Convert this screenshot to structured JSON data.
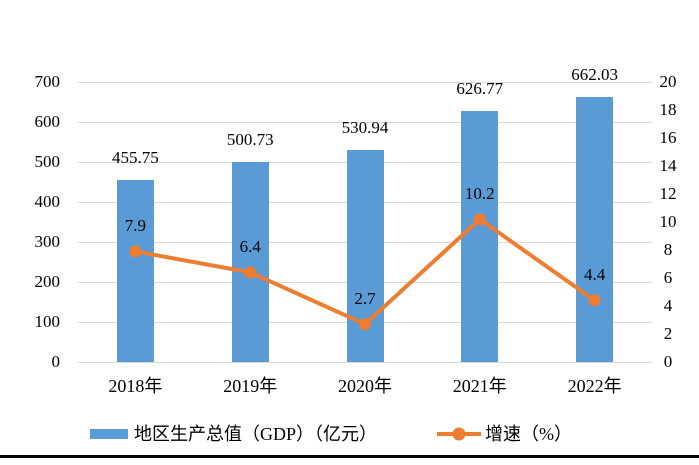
{
  "chart_data": {
    "type": "bar",
    "subtype": "bar-line-combo",
    "title": "",
    "categories": [
      "2018年",
      "2019年",
      "2020年",
      "2021年",
      "2022年"
    ],
    "series": [
      {
        "name": "地区生产总值（GDP）（亿元）",
        "type": "bar",
        "axis": "left",
        "color": "#5B9BD5",
        "values": [
          455.75,
          500.73,
          530.94,
          626.77,
          662.03
        ],
        "labels": [
          "455.75",
          "500.73",
          "530.94",
          "626.77",
          "662.03"
        ]
      },
      {
        "name": "增速（%）",
        "type": "line",
        "axis": "right",
        "color": "#ED7D31",
        "values": [
          7.9,
          6.4,
          2.7,
          10.2,
          4.4
        ],
        "labels": [
          "7.9",
          "6.4",
          "2.7",
          "10.2",
          "4.4"
        ]
      }
    ],
    "left_axis": {
      "min": 0,
      "max": 700,
      "step": 100,
      "ticks": [
        "0",
        "100",
        "200",
        "300",
        "400",
        "500",
        "600",
        "700"
      ]
    },
    "right_axis": {
      "min": 0,
      "max": 20,
      "step": 2,
      "ticks": [
        "0",
        "2",
        "4",
        "6",
        "8",
        "10",
        "12",
        "14",
        "16",
        "18",
        "20"
      ]
    },
    "grid": true,
    "gridline_color": "#D9D9D9",
    "legend_position": "bottom",
    "background": "#FFFFFF",
    "bottom_rule_color": "#000000"
  }
}
